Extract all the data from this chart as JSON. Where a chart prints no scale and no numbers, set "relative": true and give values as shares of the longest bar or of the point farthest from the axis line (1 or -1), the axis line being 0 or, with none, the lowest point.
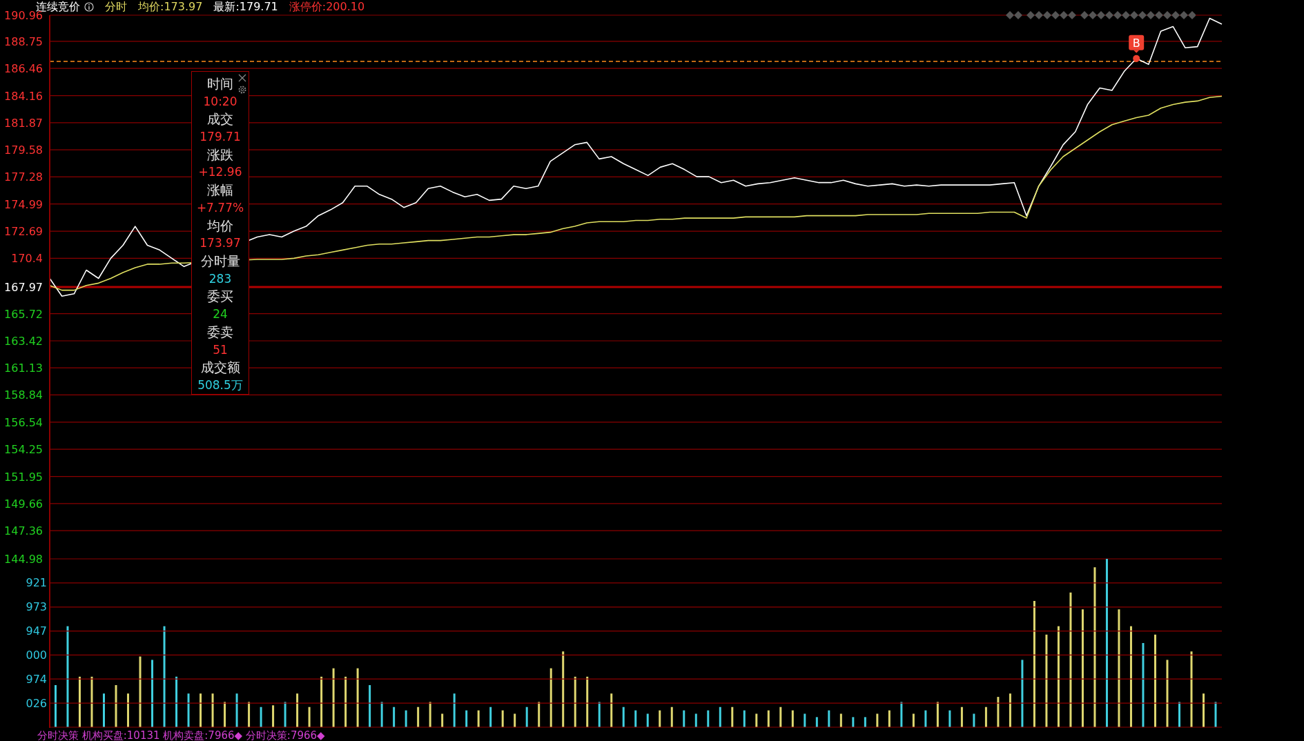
{
  "chart_data": [
    {
      "type": "line",
      "title": "连续竞价",
      "subtitle": "分时 均价:173.97 最新:179.71 涨停价:200.10",
      "categories": [
        null,
        null,
        null,
        null,
        null,
        null,
        null,
        null,
        null,
        null,
        null,
        null,
        null,
        null,
        null,
        null,
        null,
        null,
        null,
        null,
        null,
        null,
        null,
        null,
        null,
        null,
        null,
        null,
        null,
        null,
        null,
        null,
        null,
        null,
        null,
        null,
        null,
        null,
        null,
        null,
        null,
        null,
        null,
        null,
        null,
        null,
        null,
        null,
        null,
        null,
        null,
        null,
        null,
        null,
        null,
        null,
        null,
        null,
        null,
        null,
        null,
        null,
        null,
        null,
        null,
        null,
        null,
        null,
        null,
        null,
        null,
        null,
        null,
        null,
        null,
        null,
        null,
        null,
        null,
        null,
        null,
        null,
        null,
        null,
        null,
        null,
        null,
        null,
        null,
        null,
        null,
        null,
        null,
        null,
        null,
        null,
        null
      ],
      "series": [
        {
          "type": "line",
          "color": "#ffffff",
          "values": [
            168.7,
            167.2,
            167.4,
            169.4,
            168.7,
            170.4,
            171.5,
            173.1,
            171.5,
            171.1,
            170.4,
            169.7,
            null,
            null,
            null,
            null,
            null,
            172.2,
            172.4,
            172.2,
            172.7,
            173.1,
            174.0,
            174.5,
            175.1,
            176.5,
            176.5,
            175.8,
            175.4,
            174.7,
            175.1,
            176.3,
            176.5,
            176.0,
            175.6,
            175.8,
            175.3,
            175.4,
            176.5,
            176.3,
            176.5,
            178.6,
            179.3,
            180.0,
            180.2,
            178.8,
            179.0,
            178.4,
            177.9,
            177.4,
            178.1,
            178.4,
            177.9,
            177.3,
            177.3,
            176.8,
            177.0,
            176.5,
            176.7,
            176.8,
            177.0,
            177.2,
            177.0,
            176.8,
            176.8,
            177.0,
            176.7,
            176.5,
            176.6,
            176.7,
            176.5,
            176.6,
            176.5,
            176.6,
            176.6,
            176.6,
            176.6,
            176.6,
            176.7,
            176.8,
            174.0,
            176.5,
            178.2,
            180.0,
            181.1,
            183.4,
            184.8,
            184.6,
            186.2,
            187.3,
            186.8,
            189.6,
            190.0,
            188.2,
            188.3,
            190.7,
            190.2
          ]
        },
        {
          "type": "line",
          "color": "#e0e060",
          "values": [
            168.1,
            167.7,
            167.7,
            168.1,
            168.3,
            168.7,
            169.2,
            169.6,
            169.9,
            169.9,
            170.0,
            170.0,
            null,
            null,
            null,
            null,
            null,
            170.3,
            170.3,
            170.3,
            170.4,
            170.6,
            170.7,
            170.9,
            171.1,
            171.3,
            171.5,
            171.6,
            171.6,
            171.7,
            171.8,
            171.9,
            171.9,
            172.0,
            172.1,
            172.2,
            172.2,
            172.3,
            172.4,
            172.4,
            172.5,
            172.6,
            172.9,
            173.1,
            173.4,
            173.5,
            173.5,
            173.5,
            173.6,
            173.6,
            173.7,
            173.7,
            173.8,
            173.8,
            173.8,
            173.8,
            173.8,
            173.9,
            173.9,
            173.9,
            173.9,
            173.9,
            174.0,
            174.0,
            174.0,
            174.0,
            174.0,
            174.1,
            174.1,
            174.1,
            174.1,
            174.1,
            174.2,
            174.2,
            174.2,
            174.2,
            174.2,
            174.3,
            174.3,
            174.3,
            173.8,
            176.5,
            177.9,
            179.0,
            179.7,
            180.4,
            181.1,
            181.7,
            182.0,
            182.3,
            182.5,
            183.1,
            183.4,
            183.6,
            183.7,
            184.0,
            184.1
          ]
        }
      ],
      "ylim": [
        144.98,
        190.96
      ],
      "yticks": [
        144.98,
        147.36,
        149.66,
        151.95,
        154.25,
        156.54,
        158.84,
        161.13,
        163.42,
        165.72,
        167.97,
        170.4,
        172.69,
        174.99,
        177.28,
        179.58,
        181.87,
        184.16,
        186.46,
        188.75,
        190.96
      ],
      "grid": "y",
      "tick_labels": "y",
      "ref_lines": [
        {
          "axis": "y",
          "value": 167.97,
          "color": "#b00000"
        },
        {
          "axis": "y",
          "value": 187.05,
          "color": "#ff8c1a",
          "line_style": "dashed"
        }
      ],
      "annotations": [
        "时间",
        "10:20",
        "成交",
        "179.71",
        "涨跌",
        "+12.96",
        "涨幅",
        "+7.77%",
        "均价",
        "173.97",
        "分时量",
        "283",
        "委买",
        "24",
        "委卖",
        "51",
        "成交额",
        "508.5万",
        {
          "text": "B",
          "y": 187.3
        }
      ]
    },
    {
      "type": "bar",
      "relative": true,
      "xlabel": "分时决策 机构买盘:10131 机构卖盘:7966◆ 分时决策:7966◆",
      "categories": [
        null,
        null,
        null,
        null,
        null,
        null,
        null,
        null,
        null,
        null,
        null,
        null,
        null,
        null,
        null,
        null,
        null,
        null,
        null,
        null,
        null,
        null,
        null,
        null,
        null,
        null,
        null,
        null,
        null,
        null,
        null,
        null,
        null,
        null,
        null,
        null,
        null,
        null,
        null,
        null,
        null,
        null,
        null,
        null,
        null,
        null,
        null,
        null,
        null,
        null,
        null,
        null,
        null,
        null,
        null,
        null,
        null,
        null,
        null,
        null,
        null,
        null,
        null,
        null,
        null,
        null,
        null,
        null,
        null,
        null,
        null,
        null,
        null,
        null,
        null,
        null,
        null,
        null,
        null,
        null,
        null,
        null,
        null,
        null,
        null,
        null,
        null,
        null,
        null,
        null,
        null,
        null,
        null,
        null,
        null,
        null,
        null
      ],
      "values": [
        0.25,
        0.6,
        0.3,
        0.3,
        0.2,
        0.25,
        0.2,
        0.42,
        0.4,
        0.6,
        0.3,
        0.2,
        0.2,
        0.2,
        0.15,
        0.2,
        0.15,
        0.12,
        0.13,
        0.15,
        0.2,
        0.12,
        0.3,
        0.35,
        0.3,
        0.35,
        0.25,
        0.15,
        0.12,
        0.1,
        0.12,
        0.15,
        0.08,
        0.2,
        0.1,
        0.1,
        0.12,
        0.1,
        0.08,
        0.12,
        0.15,
        0.35,
        0.45,
        0.3,
        0.3,
        0.15,
        0.2,
        0.12,
        0.1,
        0.08,
        0.1,
        0.12,
        0.1,
        0.08,
        0.1,
        0.12,
        0.12,
        0.1,
        0.08,
        0.1,
        0.12,
        0.1,
        0.08,
        0.06,
        0.1,
        0.08,
        0.06,
        0.06,
        0.08,
        0.1,
        0.15,
        0.08,
        0.1,
        0.15,
        0.1,
        0.12,
        0.08,
        0.12,
        0.18,
        0.2,
        0.4,
        0.75,
        0.55,
        0.6,
        0.8,
        0.7,
        0.95,
        1,
        0.7,
        0.6,
        0.5,
        0.55,
        0.4,
        0.15,
        0.45,
        0.2,
        0.15
      ],
      "colors": [
        "#40d0e0",
        "#40d0e0",
        "#e0d870",
        "#e0d870",
        "#40d0e0",
        "#e0d870",
        "#e0d870",
        "#e0d870",
        "#40d0e0",
        "#40d0e0",
        "#40d0e0",
        "#40d0e0",
        "#e0d870",
        "#e0d870",
        "#e0d870",
        "#40d0e0",
        "#e0d870",
        "#40d0e0",
        "#e0d870",
        "#40d0e0",
        "#e0d870",
        "#e0d870",
        "#e0d870",
        "#e0d870",
        "#e0d870",
        "#e0d870",
        "#40d0e0",
        "#40d0e0",
        "#40d0e0",
        "#40d0e0",
        "#e0d870",
        "#e0d870",
        "#e0d870",
        "#40d0e0",
        "#40d0e0",
        "#e0d870",
        "#40d0e0",
        "#e0d870",
        "#e0d870",
        "#40d0e0",
        "#e0d870",
        "#e0d870",
        "#e0d870",
        "#e0d870",
        "#e0d870",
        "#40d0e0",
        "#e0d870",
        "#40d0e0",
        "#40d0e0",
        "#40d0e0",
        "#e0d870",
        "#e0d870",
        "#40d0e0",
        "#40d0e0",
        "#40d0e0",
        "#40d0e0",
        "#e0d870",
        "#40d0e0",
        "#e0d870",
        "#e0d870",
        "#e0d870",
        "#e0d870",
        "#40d0e0",
        "#40d0e0",
        "#40d0e0",
        "#e0d870",
        "#40d0e0",
        "#40d0e0",
        "#e0d870",
        "#e0d870",
        "#40d0e0",
        "#e0d870",
        "#40d0e0",
        "#e0d870",
        "#40d0e0",
        "#e0d870",
        "#40d0e0",
        "#e0d870",
        "#e0d870",
        "#e0d870",
        "#40d0e0",
        "#e0d870",
        "#e0d870",
        "#e0d870",
        "#e0d870",
        "#e0d870",
        "#e0d870",
        "#40d0e0",
        "#e0d870",
        "#e0d870",
        "#40d0e0",
        "#e0d870",
        "#e0d870",
        "#40d0e0",
        "#e0d870",
        "#e0d870",
        "#40d0e0"
      ],
      "tick_labels": false,
      "annotations": [
        "921",
        "973",
        "947",
        "000",
        "974",
        "026"
      ],
      "ref_lines": [
        {
          "axis": "y",
          "value": 0.857,
          "color": "#8b0000"
        },
        {
          "axis": "y",
          "value": 0.714,
          "color": "#8b0000"
        },
        {
          "axis": "y",
          "value": 0.571,
          "color": "#8b0000"
        },
        {
          "axis": "y",
          "value": 0.429,
          "color": "#8b0000"
        },
        {
          "axis": "y",
          "value": 0.286,
          "color": "#8b0000"
        },
        {
          "axis": "y",
          "value": 0.143,
          "color": "#8b0000"
        }
      ]
    }
  ]
}
